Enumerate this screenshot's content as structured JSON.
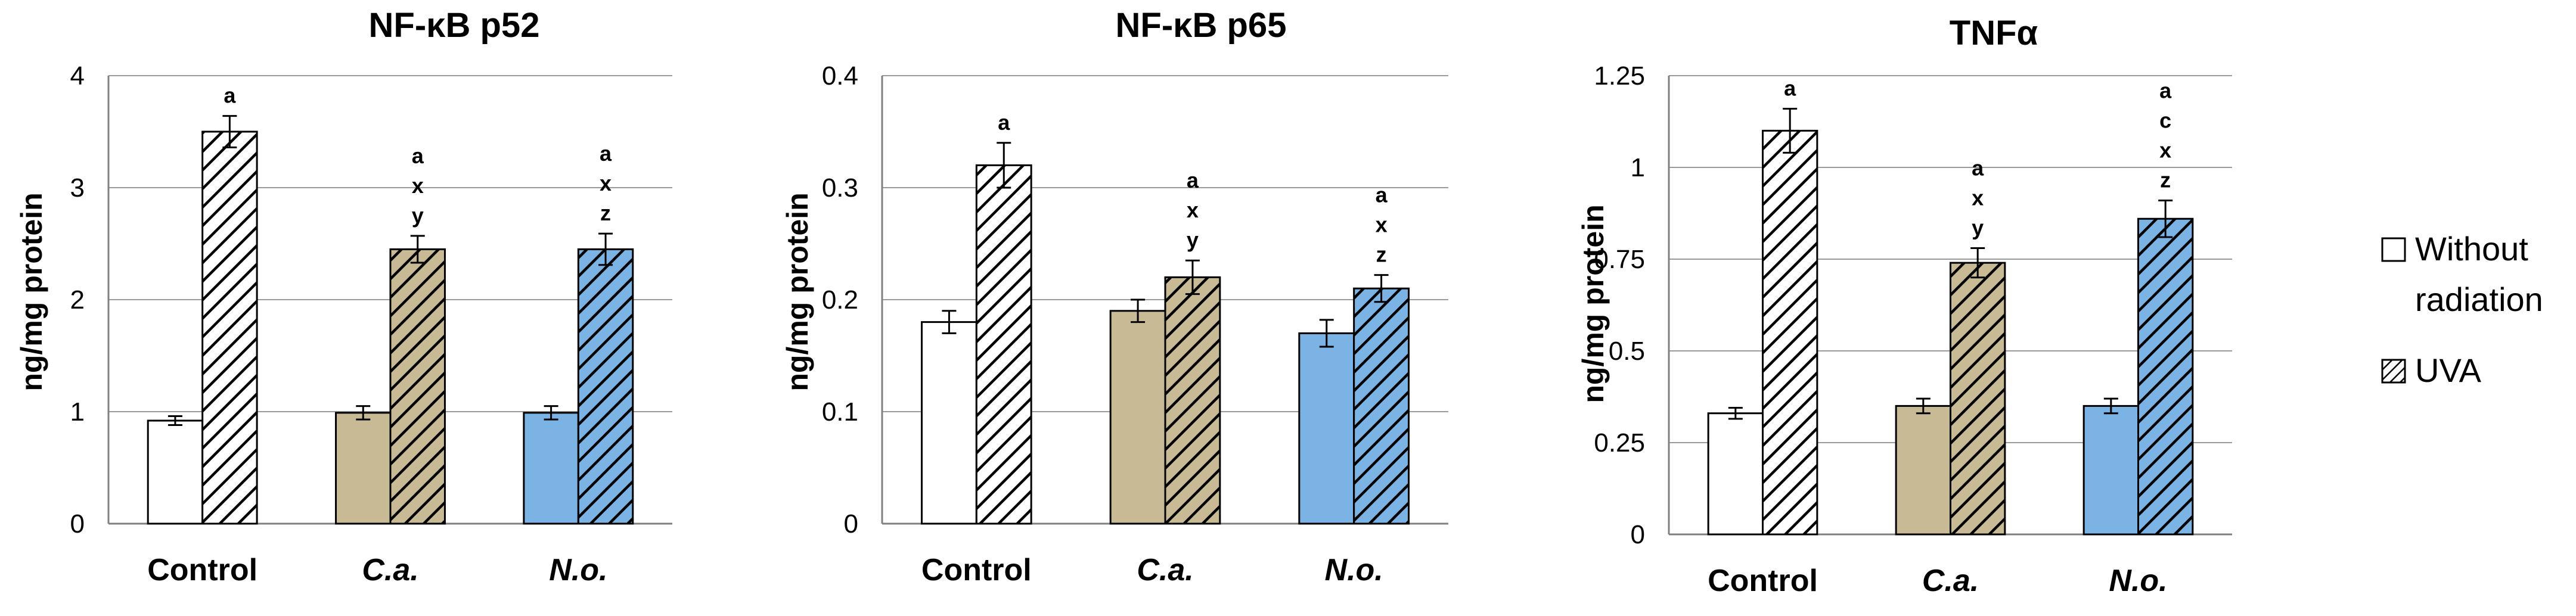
{
  "chart_data": [
    {
      "type": "bar",
      "title": "NF-κB p52",
      "ylabel": "ng/mg protein",
      "xlabel": "",
      "categories": [
        "Control",
        "C.a.",
        "N.o."
      ],
      "ylim": [
        0,
        4
      ],
      "yticks": [
        "0",
        "1",
        "2",
        "3",
        "4"
      ],
      "series": [
        {
          "name": "Without radiation",
          "values": [
            0.92,
            0.99,
            0.99
          ],
          "errors": [
            0.04,
            0.06,
            0.06
          ]
        },
        {
          "name": "UVA",
          "values": [
            3.5,
            2.45,
            2.45
          ],
          "errors": [
            0.14,
            0.12,
            0.14
          ]
        }
      ],
      "significance": [
        [
          "a"
        ],
        [
          "a",
          "x",
          "y"
        ],
        [
          "a",
          "x",
          "z"
        ]
      ]
    },
    {
      "type": "bar",
      "title": "NF-κB p65",
      "ylabel": "ng/mg protein",
      "xlabel": "",
      "categories": [
        "Control",
        "C.a.",
        "N.o."
      ],
      "ylim": [
        0,
        0.4
      ],
      "yticks": [
        "0",
        "0.1",
        "0.2",
        "0.3",
        "0.4"
      ],
      "series": [
        {
          "name": "Without radiation",
          "values": [
            0.18,
            0.19,
            0.17
          ],
          "errors": [
            0.01,
            0.01,
            0.012
          ]
        },
        {
          "name": "UVA",
          "values": [
            0.32,
            0.22,
            0.21
          ],
          "errors": [
            0.02,
            0.015,
            0.012
          ]
        }
      ],
      "significance": [
        [
          "a"
        ],
        [
          "a",
          "x",
          "y"
        ],
        [
          "a",
          "x",
          "z"
        ]
      ]
    },
    {
      "type": "bar",
      "title": "TNFα",
      "ylabel": "ng/mg protein",
      "xlabel": "",
      "categories": [
        "Control",
        "C.a.",
        "N.o."
      ],
      "ylim": [
        0,
        1.25
      ],
      "yticks": [
        "0",
        "0.25",
        "0.5",
        "0.75",
        "1",
        "1.25"
      ],
      "series": [
        {
          "name": "Without radiation",
          "values": [
            0.33,
            0.35,
            0.35
          ],
          "errors": [
            0.015,
            0.02,
            0.02
          ]
        },
        {
          "name": "UVA",
          "values": [
            1.1,
            0.74,
            0.86
          ],
          "errors": [
            0.06,
            0.04,
            0.05
          ]
        }
      ],
      "significance": [
        [
          "a"
        ],
        [
          "a",
          "x",
          "y"
        ],
        [
          "a",
          "c",
          "x",
          "z"
        ]
      ]
    }
  ],
  "legend": {
    "items": [
      {
        "label_line1": "Without",
        "label_line2": "radiation",
        "pattern": "solid-white"
      },
      {
        "label_line1": "UVA",
        "label_line2": "",
        "pattern": "hatched"
      }
    ]
  },
  "colors": {
    "control_solid": "#ffffff",
    "ca_solid": "#c8ba94",
    "no_solid": "#7ab3e4",
    "hatch_line": "#000000",
    "grid": "#9a9a9a"
  }
}
